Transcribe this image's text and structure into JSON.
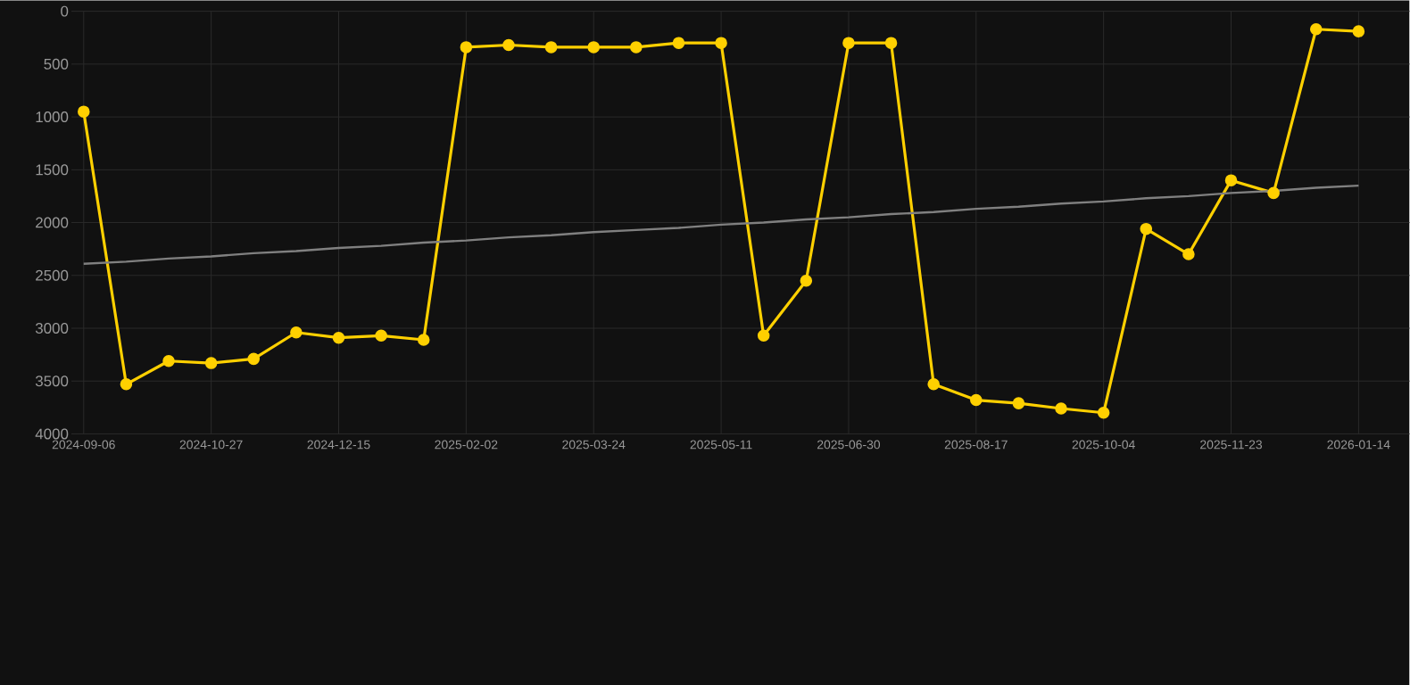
{
  "chart_data": {
    "type": "line",
    "categories": [
      "2024-09-06",
      null,
      null,
      "2024-10-27",
      null,
      null,
      "2024-12-15",
      null,
      null,
      "2025-02-02",
      null,
      null,
      "2025-03-24",
      null,
      null,
      "2025-05-11",
      null,
      null,
      "2025-06-30",
      null,
      null,
      "2025-08-17",
      null,
      null,
      "2025-10-04",
      null,
      null,
      "2025-11-23",
      null,
      null,
      "2026-01-14"
    ],
    "series": [
      {
        "color": "#ffd000",
        "marker": "circle",
        "values": [
          950,
          3530,
          3310,
          3330,
          3290,
          3040,
          3090,
          3070,
          3110,
          340,
          320,
          340,
          340,
          340,
          300,
          300,
          3070,
          2550,
          300,
          300,
          3530,
          3680,
          3710,
          3760,
          3800,
          2060,
          2300,
          1600,
          1720,
          170,
          190
        ]
      },
      {
        "type": "line",
        "color": "#808080",
        "marker": "none",
        "values": [
          2390,
          2370,
          2340,
          2320,
          2290,
          2270,
          2240,
          2220,
          2190,
          2170,
          2140,
          2120,
          2090,
          2070,
          2050,
          2020,
          2000,
          1970,
          1950,
          1920,
          1900,
          1870,
          1850,
          1820,
          1800,
          1770,
          1750,
          1720,
          1700,
          1670,
          1650
        ]
      }
    ],
    "ylim": [
      4000,
      0
    ],
    "yticks": [
      0,
      500,
      1000,
      1500,
      2000,
      2500,
      3000,
      3500,
      4000
    ],
    "grid": true
  }
}
